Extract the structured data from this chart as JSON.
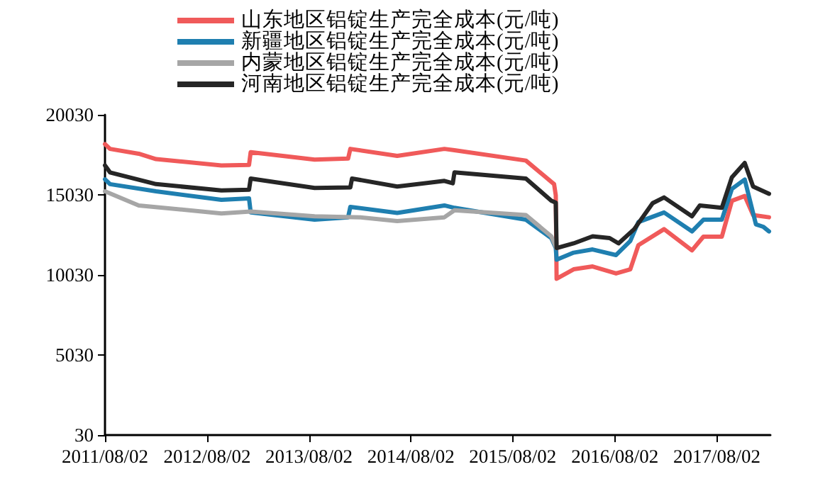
{
  "chart_data": {
    "type": "line",
    "xlim": [
      "2011-08-02",
      "2018-02-10"
    ],
    "xticks": [
      {
        "value": "2011-08-02",
        "label": "2011/08/02"
      },
      {
        "value": "2012-08-02",
        "label": "2012/08/02"
      },
      {
        "value": "2013-08-02",
        "label": "2013/08/02"
      },
      {
        "value": "2014-08-02",
        "label": "2014/08/02"
      },
      {
        "value": "2015-08-02",
        "label": "2015/08/02"
      },
      {
        "value": "2016-08-02",
        "label": "2016/08/02"
      },
      {
        "value": "2017-08-02",
        "label": "2017/08/02"
      }
    ],
    "ylim": [
      30,
      20030
    ],
    "yticks": [
      30,
      5030,
      10030,
      15030,
      20030
    ],
    "grid": false,
    "legend": "top",
    "marker": "none",
    "line_style": "solid",
    "series": [
      {
        "name": "山东地区铝锭生产完全成本(元/吨)",
        "color": "#f05a5a",
        "x": [
          "2011-08-02",
          "2011-08-20",
          "2011-12-01",
          "2012-02-01",
          "2012-09-22",
          "2012-12-30",
          "2013-01-05",
          "2013-08-22",
          "2013-12-20",
          "2013-12-28",
          "2014-06-14",
          "2014-11-30",
          "2015-01-05",
          "2015-09-18",
          "2015-12-28",
          "2016-01-03",
          "2016-01-06",
          "2016-03-07",
          "2016-05-14",
          "2016-08-06",
          "2016-09-26",
          "2016-10-25",
          "2017-01-25",
          "2017-05-05",
          "2017-06-15",
          "2017-08-20",
          "2017-09-25",
          "2017-11-10",
          "2017-12-10",
          "2018-02-05"
        ],
        "values": [
          18200,
          17900,
          17600,
          17260,
          16870,
          16900,
          17700,
          17230,
          17300,
          17900,
          17460,
          17900,
          17820,
          17170,
          15700,
          15000,
          9790,
          10380,
          10560,
          10120,
          10380,
          11890,
          12890,
          11560,
          12420,
          12420,
          14660,
          14960,
          13770,
          13630
        ]
      },
      {
        "name": "新疆地区铝锭生产完全成本(元/吨)",
        "color": "#1f7fb0",
        "x": [
          "2011-08-02",
          "2011-08-20",
          "2012-02-01",
          "2012-09-22",
          "2012-12-30",
          "2013-01-05",
          "2013-08-22",
          "2013-12-20",
          "2013-12-28",
          "2014-06-14",
          "2014-11-30",
          "2015-01-05",
          "2015-09-18",
          "2015-12-18",
          "2016-01-03",
          "2016-01-06",
          "2016-03-07",
          "2016-05-14",
          "2016-08-06",
          "2016-09-26",
          "2016-10-25",
          "2017-01-25",
          "2017-05-05",
          "2017-06-15",
          "2017-08-20",
          "2017-09-25",
          "2017-11-10",
          "2017-12-20",
          "2018-01-15",
          "2018-02-05"
        ],
        "values": [
          16000,
          15700,
          15250,
          14720,
          14810,
          13930,
          13480,
          13630,
          14280,
          13900,
          14370,
          14220,
          13480,
          12330,
          11710,
          10980,
          11420,
          11620,
          11270,
          12150,
          13330,
          13930,
          12750,
          13480,
          13480,
          15400,
          15990,
          13190,
          13040,
          12750
        ]
      },
      {
        "name": "内蒙地区铝锭生产完全成本(元/吨)",
        "color": "#a6a6a6",
        "x": [
          "2011-08-02",
          "2011-12-01",
          "2012-09-22",
          "2013-01-05",
          "2013-08-22",
          "2014-02-01",
          "2014-06-14",
          "2014-11-30",
          "2015-01-05",
          "2015-09-18",
          "2015-12-18",
          "2016-01-05"
        ],
        "values": [
          15250,
          14370,
          13870,
          13990,
          13690,
          13630,
          13390,
          13630,
          14070,
          13770,
          12440,
          11710
        ]
      },
      {
        "name": "河南地区铝锭生产完全成本(元/吨)",
        "color": "#262626",
        "x": [
          "2011-08-02",
          "2011-08-20",
          "2012-02-01",
          "2012-09-22",
          "2012-12-30",
          "2013-01-05",
          "2013-08-22",
          "2013-12-28",
          "2014-01-03",
          "2014-06-14",
          "2014-11-30",
          "2014-12-30",
          "2015-01-05",
          "2015-09-18",
          "2015-12-18",
          "2016-01-03",
          "2016-01-06",
          "2016-03-07",
          "2016-05-14",
          "2016-07-14",
          "2016-08-15",
          "2016-10-10",
          "2016-12-15",
          "2017-01-25",
          "2017-05-05",
          "2017-06-02",
          "2017-08-20",
          "2017-09-25",
          "2017-11-10",
          "2017-12-10",
          "2018-02-05"
        ],
        "values": [
          16870,
          16430,
          15700,
          15310,
          15350,
          16050,
          15460,
          15500,
          16050,
          15550,
          15900,
          15750,
          16430,
          16050,
          14660,
          14540,
          11710,
          12000,
          12440,
          12330,
          12000,
          12890,
          14510,
          14870,
          13690,
          14370,
          14220,
          16130,
          17020,
          15550,
          15100
        ]
      }
    ]
  }
}
